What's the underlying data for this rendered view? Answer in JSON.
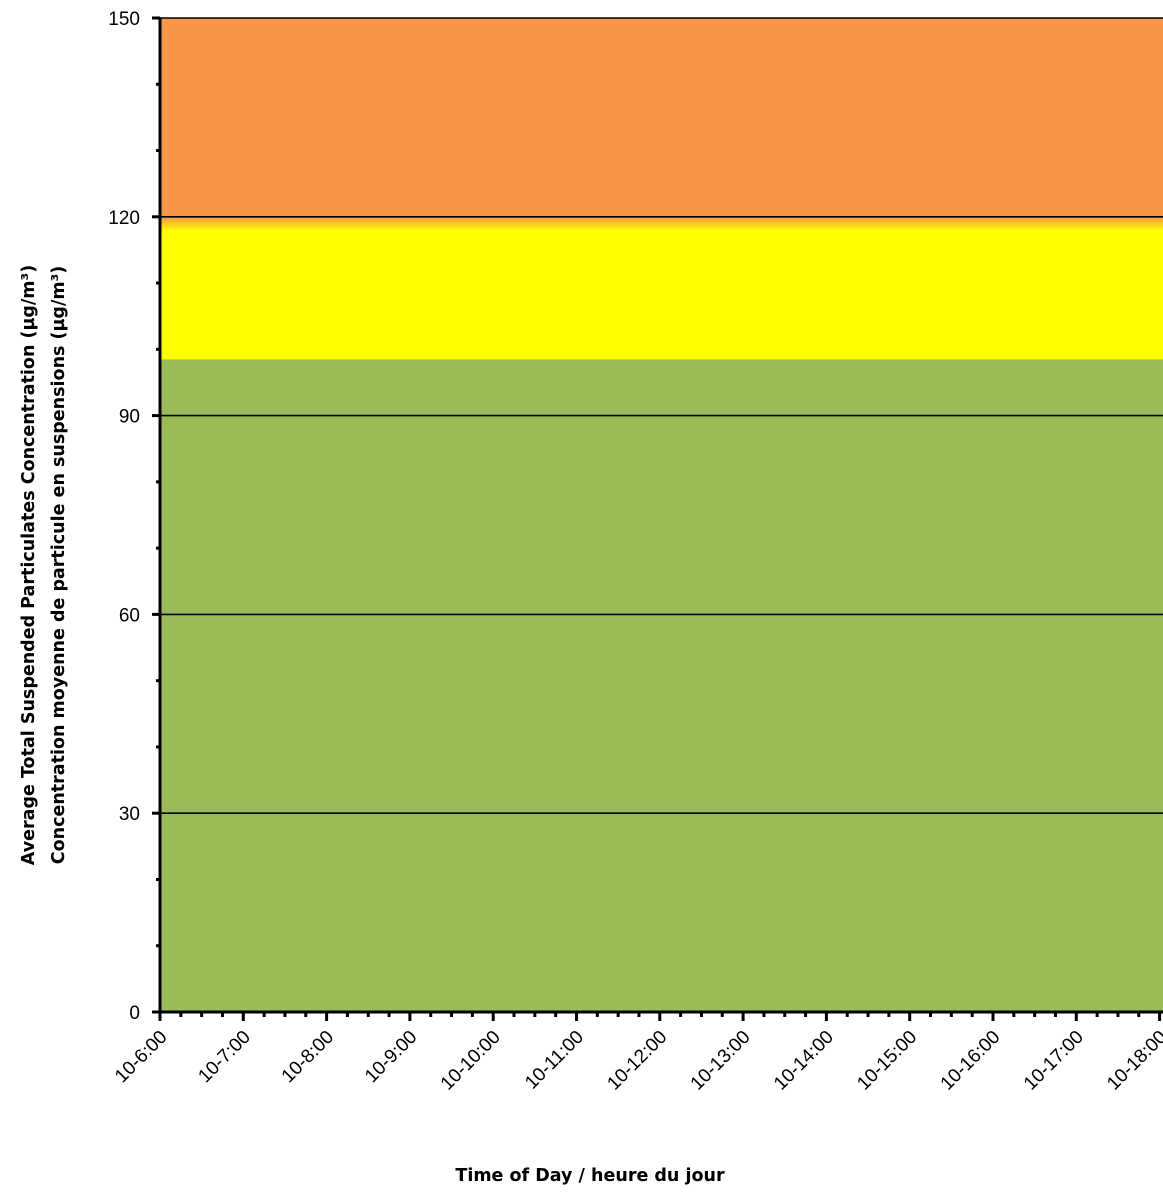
{
  "chart_data": {
    "type": "area",
    "title": "",
    "xlabel": "Time of Day / heure du jour",
    "ylabel_lines": [
      "Average Total Suspended Particulates Concentration (µg/m³)",
      "Concentration moyenne de particule en suspensions (µg/m³)"
    ],
    "x_categories": [
      "10-6:00",
      "10-7:00",
      "10-8:00",
      "10-9:00",
      "10-10:00",
      "10-11:00",
      "10-12:00",
      "10-13:00",
      "10-14:00",
      "10-15:00",
      "10-16:00",
      "10-17:00",
      "10-18:00"
    ],
    "ylim": [
      0,
      150
    ],
    "y_ticks": [
      0,
      30,
      60,
      90,
      120,
      150
    ],
    "y_minor_step": 10,
    "x_minor_per_major": 4,
    "gridlines": [
      30,
      60,
      90,
      120
    ],
    "bands": [
      {
        "from": 0,
        "to": 98.5,
        "color": "#9BBB59"
      },
      {
        "from": 98.5,
        "to": 120,
        "color": "#FFFF00"
      },
      {
        "from": 120,
        "to": 150,
        "color": "#F79646"
      }
    ],
    "series": []
  }
}
